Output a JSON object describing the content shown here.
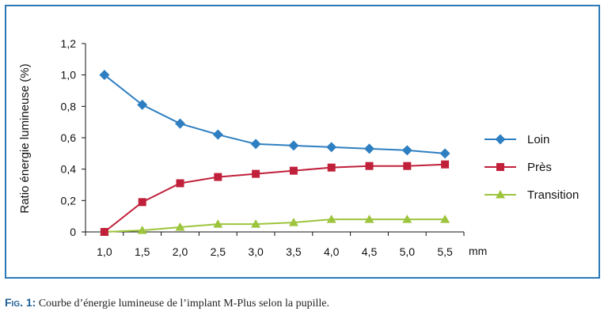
{
  "chart_data": {
    "type": "line",
    "title": "",
    "xlabel": "",
    "x_unit": "mm",
    "ylabel": "Ratio énergie lumineuse (%)",
    "x": [
      "1,0",
      "1,5",
      "2,0",
      "2,5",
      "3,0",
      "3,5",
      "4,0",
      "4,5",
      "5,0",
      "5,5"
    ],
    "ylim": [
      0,
      1.2
    ],
    "yticks": [
      0,
      0.2,
      0.4,
      0.6,
      0.8,
      1.0,
      1.2
    ],
    "ytick_labels": [
      "0",
      "0,2",
      "0,4",
      "0,6",
      "0,8",
      "1,0",
      "1,2"
    ],
    "grid": false,
    "legend_placement": "right",
    "series": [
      {
        "name": "Loin",
        "color": "#2e7fc1",
        "marker": "diamond",
        "values": [
          1.0,
          0.81,
          0.69,
          0.62,
          0.56,
          0.55,
          0.54,
          0.53,
          0.52,
          0.5
        ]
      },
      {
        "name": "Près",
        "color": "#c0203a",
        "marker": "square",
        "values": [
          0,
          0.19,
          0.31,
          0.35,
          0.37,
          0.39,
          0.41,
          0.42,
          0.42,
          0.43
        ]
      },
      {
        "name": "Transition",
        "color": "#9cc43c",
        "marker": "triangle",
        "values": [
          0,
          0.01,
          0.03,
          0.05,
          0.05,
          0.06,
          0.08,
          0.08,
          0.08,
          0.08
        ]
      }
    ]
  },
  "caption": {
    "label": "Fig. 1:",
    "text": " Courbe d’énergie lumineuse de l’implant M-Plus selon la pupille."
  }
}
